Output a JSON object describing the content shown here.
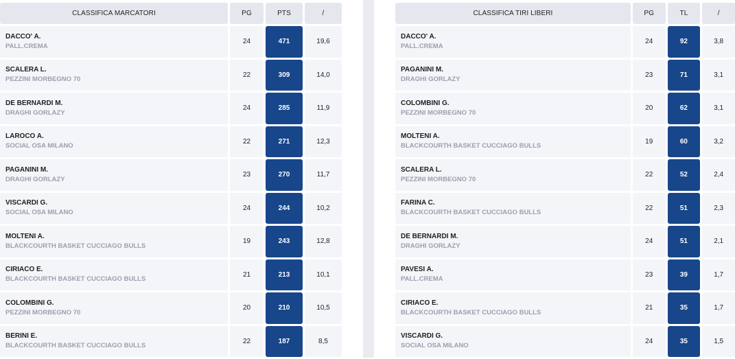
{
  "scorers": {
    "headers": [
      "CLASSIFICA MARCATORI",
      "PG",
      "PTS",
      "/"
    ],
    "rows": [
      {
        "name": "DACCO' A.",
        "team": "PALL.CREMA",
        "pg": "24",
        "val": "471",
        "avg": "19,6"
      },
      {
        "name": "SCALERA L.",
        "team": "PEZZINI MORBEGNO 70",
        "pg": "22",
        "val": "309",
        "avg": "14,0"
      },
      {
        "name": "DE BERNARDI M.",
        "team": "DRAGHI GORLAZY",
        "pg": "24",
        "val": "285",
        "avg": "11,9"
      },
      {
        "name": "LAROCO A.",
        "team": "SOCIAL OSA MILANO",
        "pg": "22",
        "val": "271",
        "avg": "12,3"
      },
      {
        "name": "PAGANINI M.",
        "team": "DRAGHI GORLAZY",
        "pg": "23",
        "val": "270",
        "avg": "11,7"
      },
      {
        "name": "VISCARDI G.",
        "team": "SOCIAL OSA MILANO",
        "pg": "24",
        "val": "244",
        "avg": "10,2"
      },
      {
        "name": "MOLTENI A.",
        "team": "BLACKCOURTH BASKET CUCCIAGO BULLS",
        "pg": "19",
        "val": "243",
        "avg": "12,8"
      },
      {
        "name": "CIRIACO E.",
        "team": "BLACKCOURTH BASKET CUCCIAGO BULLS",
        "pg": "21",
        "val": "213",
        "avg": "10,1"
      },
      {
        "name": "COLOMBINI G.",
        "team": "PEZZINI MORBEGNO 70",
        "pg": "20",
        "val": "210",
        "avg": "10,5"
      },
      {
        "name": "BERINI E.",
        "team": "BLACKCOURTH BASKET CUCCIAGO BULLS",
        "pg": "22",
        "val": "187",
        "avg": "8,5"
      }
    ]
  },
  "freethrows": {
    "headers": [
      "CLASSIFICA TIRI LIBERI",
      "PG",
      "TL",
      "/"
    ],
    "rows": [
      {
        "name": "DACCO' A.",
        "team": "PALL.CREMA",
        "pg": "24",
        "val": "92",
        "avg": "3,8"
      },
      {
        "name": "PAGANINI M.",
        "team": "DRAGHI GORLAZY",
        "pg": "23",
        "val": "71",
        "avg": "3,1"
      },
      {
        "name": "COLOMBINI G.",
        "team": "PEZZINI MORBEGNO 70",
        "pg": "20",
        "val": "62",
        "avg": "3,1"
      },
      {
        "name": "MOLTENI A.",
        "team": "BLACKCOURTH BASKET CUCCIAGO BULLS",
        "pg": "19",
        "val": "60",
        "avg": "3,2"
      },
      {
        "name": "SCALERA L.",
        "team": "PEZZINI MORBEGNO 70",
        "pg": "22",
        "val": "52",
        "avg": "2,4"
      },
      {
        "name": "FARINA C.",
        "team": "BLACKCOURTH BASKET CUCCIAGO BULLS",
        "pg": "22",
        "val": "51",
        "avg": "2,3"
      },
      {
        "name": "DE BERNARDI M.",
        "team": "DRAGHI GORLAZY",
        "pg": "24",
        "val": "51",
        "avg": "2,1"
      },
      {
        "name": "PAVESI A.",
        "team": "PALL.CREMA",
        "pg": "23",
        "val": "39",
        "avg": "1,7"
      },
      {
        "name": "CIRIACO E.",
        "team": "BLACKCOURTH BASKET CUCCIAGO BULLS",
        "pg": "21",
        "val": "35",
        "avg": "1,7"
      },
      {
        "name": "VISCARDI G.",
        "team": "SOCIAL OSA MILANO",
        "pg": "24",
        "val": "35",
        "avg": "1,5"
      }
    ]
  },
  "colors": {
    "highlight": "#17468a",
    "header_bg": "#e5e7ee",
    "row_bg": "#f4f5f9",
    "team_text": "#9aa0ad"
  }
}
